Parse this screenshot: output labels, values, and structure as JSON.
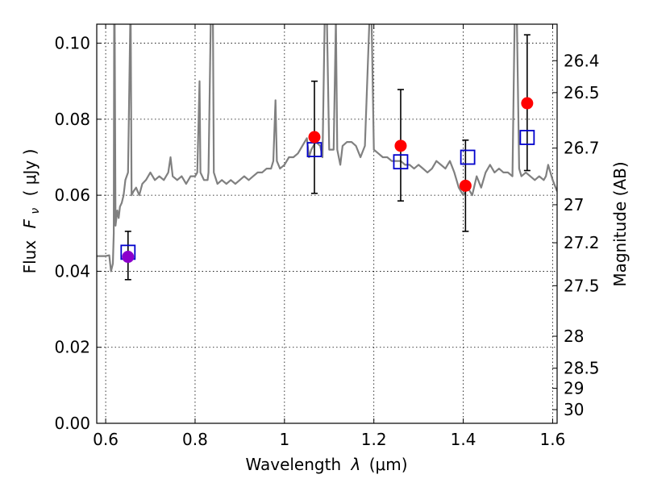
{
  "chart_data": {
    "type": "scatter",
    "xlabel_text": "Wavelength",
    "xlabel_symbol": "λ",
    "xlabel_unit": "(μm)",
    "ylabel_prefix": "Flux",
    "ylabel_symbol": "F",
    "ylabel_sub": "ν",
    "ylabel_unit": "( μJy )",
    "y2label": "Magnitude (AB)",
    "xlim": [
      0.58,
      1.61
    ],
    "ylim": [
      0.0,
      0.105
    ],
    "grid": true,
    "x_ticks": [
      {
        "value": 0.6,
        "label": "0.6"
      },
      {
        "value": 0.8,
        "label": "0.8"
      },
      {
        "value": 1.0,
        "label": "1"
      },
      {
        "value": 1.2,
        "label": "1.2"
      },
      {
        "value": 1.4,
        "label": "1.4"
      },
      {
        "value": 1.6,
        "label": "1.6"
      }
    ],
    "y_ticks": [
      {
        "value": 0.0,
        "label": "0.00"
      },
      {
        "value": 0.02,
        "label": "0.02"
      },
      {
        "value": 0.04,
        "label": "0.04"
      },
      {
        "value": 0.06,
        "label": "0.06"
      },
      {
        "value": 0.08,
        "label": "0.08"
      },
      {
        "value": 0.1,
        "label": "0.10"
      }
    ],
    "mag_ticks": [
      {
        "flux": 0.0954,
        "label": "26.4"
      },
      {
        "flux": 0.087,
        "label": "26.5"
      },
      {
        "flux": 0.0724,
        "label": "26.7"
      },
      {
        "flux": 0.0575,
        "label": "27"
      },
      {
        "flux": 0.0475,
        "label": "27.2"
      },
      {
        "flux": 0.0362,
        "label": "27.5"
      },
      {
        "flux": 0.0229,
        "label": "28"
      },
      {
        "flux": 0.0145,
        "label": "28.5"
      },
      {
        "flux": 0.0092,
        "label": "29"
      },
      {
        "flux": 0.0036,
        "label": "30"
      }
    ],
    "series": [
      {
        "kind": "spectrum",
        "color": "#808080",
        "points": [
          [
            0.58,
            0.044
          ],
          [
            0.6,
            0.044
          ],
          [
            0.608,
            0.0442
          ],
          [
            0.612,
            0.04
          ],
          [
            0.616,
            0.042
          ],
          [
            0.618,
            0.05
          ],
          [
            0.619,
            0.106
          ],
          [
            0.62,
            0.106
          ],
          [
            0.622,
            0.052
          ],
          [
            0.626,
            0.056
          ],
          [
            0.629,
            0.054
          ],
          [
            0.632,
            0.057
          ],
          [
            0.636,
            0.058
          ],
          [
            0.64,
            0.06
          ],
          [
            0.644,
            0.064
          ],
          [
            0.65,
            0.066
          ],
          [
            0.655,
            0.106
          ],
          [
            0.656,
            0.106
          ],
          [
            0.658,
            0.06
          ],
          [
            0.662,
            0.061
          ],
          [
            0.668,
            0.062
          ],
          [
            0.675,
            0.06
          ],
          [
            0.682,
            0.063
          ],
          [
            0.69,
            0.064
          ],
          [
            0.7,
            0.066
          ],
          [
            0.71,
            0.064
          ],
          [
            0.72,
            0.065
          ],
          [
            0.73,
            0.064
          ],
          [
            0.74,
            0.066
          ],
          [
            0.745,
            0.07
          ],
          [
            0.75,
            0.065
          ],
          [
            0.76,
            0.064
          ],
          [
            0.77,
            0.065
          ],
          [
            0.78,
            0.063
          ],
          [
            0.79,
            0.065
          ],
          [
            0.8,
            0.065
          ],
          [
            0.805,
            0.066
          ],
          [
            0.81,
            0.09
          ],
          [
            0.812,
            0.066
          ],
          [
            0.82,
            0.064
          ],
          [
            0.828,
            0.064
          ],
          [
            0.83,
            0.066
          ],
          [
            0.835,
            0.106
          ],
          [
            0.84,
            0.106
          ],
          [
            0.842,
            0.066
          ],
          [
            0.85,
            0.063
          ],
          [
            0.86,
            0.064
          ],
          [
            0.87,
            0.063
          ],
          [
            0.88,
            0.064
          ],
          [
            0.89,
            0.063
          ],
          [
            0.9,
            0.064
          ],
          [
            0.91,
            0.065
          ],
          [
            0.92,
            0.064
          ],
          [
            0.93,
            0.065
          ],
          [
            0.94,
            0.066
          ],
          [
            0.95,
            0.066
          ],
          [
            0.96,
            0.067
          ],
          [
            0.97,
            0.067
          ],
          [
            0.975,
            0.069
          ],
          [
            0.98,
            0.085
          ],
          [
            0.983,
            0.069
          ],
          [
            0.99,
            0.067
          ],
          [
            1.0,
            0.068
          ],
          [
            1.01,
            0.07
          ],
          [
            1.02,
            0.07
          ],
          [
            1.03,
            0.071
          ],
          [
            1.04,
            0.073
          ],
          [
            1.05,
            0.075
          ],
          [
            1.055,
            0.07
          ],
          [
            1.06,
            0.072
          ],
          [
            1.07,
            0.074
          ],
          [
            1.08,
            0.073
          ],
          [
            1.085,
            0.07
          ],
          [
            1.09,
            0.106
          ],
          [
            1.095,
            0.106
          ],
          [
            1.1,
            0.072
          ],
          [
            1.11,
            0.072
          ],
          [
            1.115,
            0.106
          ],
          [
            1.118,
            0.072
          ],
          [
            1.125,
            0.068
          ],
          [
            1.13,
            0.073
          ],
          [
            1.14,
            0.074
          ],
          [
            1.15,
            0.074
          ],
          [
            1.16,
            0.073
          ],
          [
            1.17,
            0.07
          ],
          [
            1.18,
            0.073
          ],
          [
            1.19,
            0.106
          ],
          [
            1.195,
            0.106
          ],
          [
            1.2,
            0.072
          ],
          [
            1.21,
            0.071
          ],
          [
            1.22,
            0.07
          ],
          [
            1.23,
            0.07
          ],
          [
            1.24,
            0.069
          ],
          [
            1.25,
            0.069
          ],
          [
            1.26,
            0.069
          ],
          [
            1.27,
            0.068
          ],
          [
            1.28,
            0.068
          ],
          [
            1.29,
            0.067
          ],
          [
            1.3,
            0.068
          ],
          [
            1.31,
            0.067
          ],
          [
            1.32,
            0.066
          ],
          [
            1.33,
            0.067
          ],
          [
            1.34,
            0.069
          ],
          [
            1.35,
            0.068
          ],
          [
            1.36,
            0.067
          ],
          [
            1.37,
            0.069
          ],
          [
            1.38,
            0.066
          ],
          [
            1.39,
            0.062
          ],
          [
            1.4,
            0.06
          ],
          [
            1.41,
            0.062
          ],
          [
            1.42,
            0.06
          ],
          [
            1.43,
            0.065
          ],
          [
            1.44,
            0.062
          ],
          [
            1.45,
            0.066
          ],
          [
            1.46,
            0.068
          ],
          [
            1.47,
            0.066
          ],
          [
            1.48,
            0.067
          ],
          [
            1.49,
            0.066
          ],
          [
            1.5,
            0.066
          ],
          [
            1.51,
            0.065
          ],
          [
            1.515,
            0.106
          ],
          [
            1.52,
            0.106
          ],
          [
            1.525,
            0.067
          ],
          [
            1.53,
            0.065
          ],
          [
            1.54,
            0.066
          ],
          [
            1.55,
            0.065
          ],
          [
            1.56,
            0.064
          ],
          [
            1.57,
            0.065
          ],
          [
            1.58,
            0.064
          ],
          [
            1.585,
            0.065
          ],
          [
            1.59,
            0.068
          ],
          [
            1.6,
            0.064
          ],
          [
            1.61,
            0.061
          ]
        ]
      },
      {
        "kind": "observed",
        "marker": "circle",
        "color": "#ff0000",
        "points": [
          {
            "x": 0.65,
            "y": 0.0438,
            "lo": 0.0378,
            "hi": 0.0505,
            "color": "#8b00cc"
          },
          {
            "x": 1.067,
            "y": 0.0753,
            "lo": 0.0605,
            "hi": 0.09
          },
          {
            "x": 1.26,
            "y": 0.073,
            "lo": 0.0585,
            "hi": 0.0878
          },
          {
            "x": 1.405,
            "y": 0.0625,
            "lo": 0.0505,
            "hi": 0.0745
          },
          {
            "x": 1.543,
            "y": 0.0842,
            "lo": 0.0665,
            "hi": 0.1022
          }
        ]
      },
      {
        "kind": "model-bandpass",
        "marker": "open-square",
        "color": "#0000cc",
        "points": [
          {
            "x": 0.65,
            "y": 0.045
          },
          {
            "x": 1.067,
            "y": 0.072
          },
          {
            "x": 1.26,
            "y": 0.0688
          },
          {
            "x": 1.41,
            "y": 0.07
          },
          {
            "x": 1.543,
            "y": 0.0752
          }
        ]
      }
    ]
  }
}
